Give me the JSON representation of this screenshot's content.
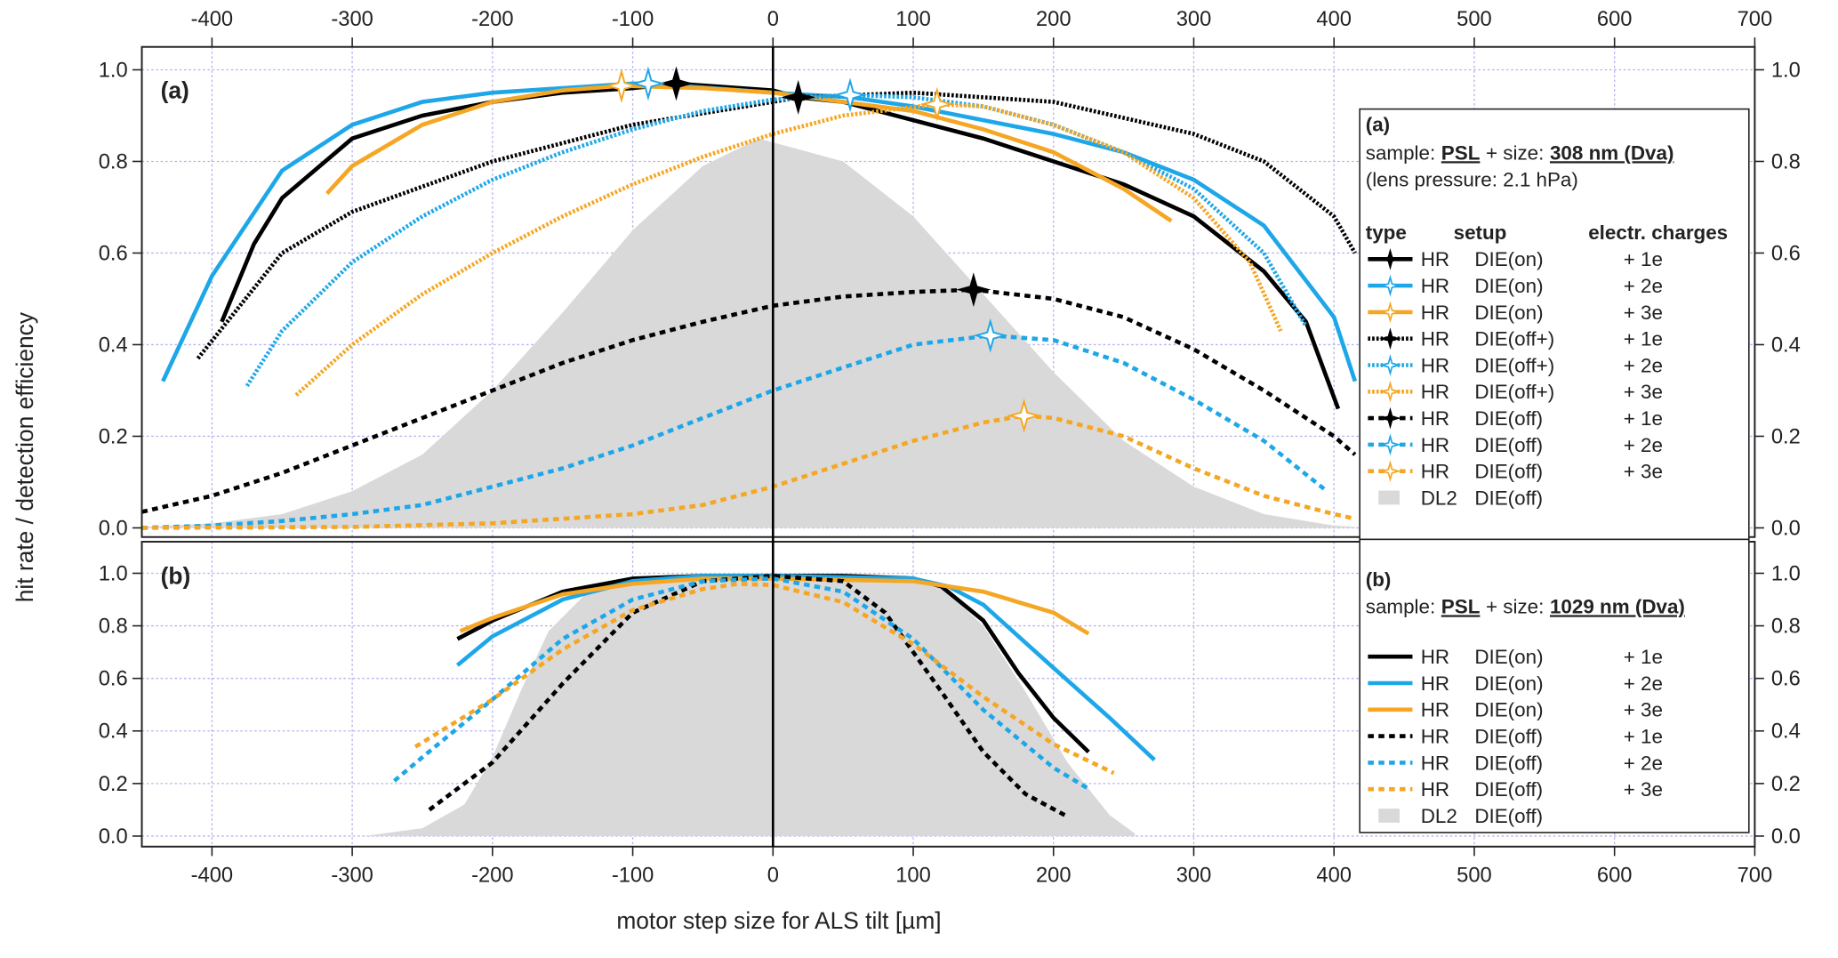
{
  "chart_data": [
    {
      "type": "line",
      "panel_label": "(a)",
      "ylabel": "hit rate / detection efficiency",
      "xlim": [
        -450,
        700
      ],
      "xticks": [
        -400,
        -300,
        -200,
        -100,
        0,
        100,
        200,
        300,
        400,
        500,
        600,
        700
      ],
      "ylim": [
        -0.02,
        1.05
      ],
      "yticks": [
        {
          "value": 0,
          "label": "0.0"
        },
        {
          "value": 0.2,
          "label": "0.2"
        },
        {
          "value": 0.4,
          "label": "0.4"
        },
        {
          "value": 0.6,
          "label": "0.6"
        },
        {
          "value": 0.8,
          "label": "0.8"
        },
        {
          "value": 1,
          "label": "1.0"
        }
      ],
      "y2lim": [
        -0.02,
        1.05
      ],
      "y2ticks": [
        {
          "value": 0,
          "label": "0.0"
        },
        {
          "value": 0.2,
          "label": "0.2"
        },
        {
          "value": 0.4,
          "label": "0.4"
        },
        {
          "value": 0.6,
          "label": "0.6"
        },
        {
          "value": 0.8,
          "label": "0.8"
        },
        {
          "value": 1,
          "label": "1.0"
        }
      ],
      "grid": true,
      "legend_title": "(a)",
      "legend_sample_label": "sample:",
      "legend_sample": "PSL",
      "legend_size_label": "+ size:",
      "legend_size": "308 nm (Dva)",
      "legend_note": "(lens pressure: 2.1 hPa)",
      "legend_headers": [
        "type",
        "setup",
        "electr. charges"
      ],
      "series": [
        {
          "name": "HR",
          "setup": "DIE(on)",
          "charges": "+ 1e",
          "color": "#000000",
          "dash": "solid",
          "x": [
            -393,
            -370,
            -350,
            -300,
            -250,
            -200,
            -150,
            -100,
            -69,
            0,
            18,
            50,
            100,
            150,
            200,
            250,
            300,
            350,
            380,
            403
          ],
          "values": [
            0.45,
            0.62,
            0.72,
            0.85,
            0.9,
            0.93,
            0.95,
            0.96,
            0.97,
            0.955,
            0.94,
            0.93,
            0.89,
            0.85,
            0.8,
            0.75,
            0.68,
            0.56,
            0.45,
            0.26
          ],
          "peak": {
            "x": -69,
            "y": 0.97
          }
        },
        {
          "name": "HR",
          "setup": "DIE(on)",
          "charges": "+ 2e",
          "color": "#1ea7e8",
          "dash": "solid",
          "x": [
            -435,
            -400,
            -350,
            -300,
            -250,
            -200,
            -150,
            -100,
            -89,
            0,
            55,
            100,
            150,
            200,
            250,
            300,
            350,
            400,
            415
          ],
          "values": [
            0.32,
            0.55,
            0.78,
            0.88,
            0.93,
            0.95,
            0.96,
            0.97,
            0.97,
            0.95,
            0.94,
            0.92,
            0.89,
            0.86,
            0.82,
            0.76,
            0.66,
            0.46,
            0.32
          ],
          "peak": {
            "x": -89,
            "y": 0.97
          }
        },
        {
          "name": "HR",
          "setup": "DIE(on)",
          "charges": "+ 3e",
          "color": "#f5a623",
          "dash": "solid",
          "x": [
            -318,
            -300,
            -250,
            -200,
            -150,
            -108,
            -50,
            0,
            50,
            100,
            150,
            200,
            250,
            284
          ],
          "values": [
            0.73,
            0.79,
            0.88,
            0.93,
            0.955,
            0.965,
            0.96,
            0.95,
            0.93,
            0.91,
            0.87,
            0.82,
            0.74,
            0.67
          ],
          "peak": {
            "x": -108,
            "y": 0.965
          }
        },
        {
          "name": "HR",
          "setup": "DIE(off+)",
          "charges": "+ 1e",
          "color": "#000000",
          "dash": "dotted",
          "x": [
            -410,
            -350,
            -300,
            -200,
            -100,
            0,
            18,
            100,
            200,
            300,
            350,
            400,
            415
          ],
          "values": [
            0.37,
            0.6,
            0.69,
            0.8,
            0.88,
            0.93,
            0.94,
            0.95,
            0.93,
            0.86,
            0.8,
            0.68,
            0.6
          ],
          "peak": {
            "x": 18,
            "y": 0.94
          }
        },
        {
          "name": "HR",
          "setup": "DIE(off+)",
          "charges": "+ 2e",
          "color": "#1ea7e8",
          "dash": "dotted",
          "x": [
            -375,
            -350,
            -300,
            -250,
            -200,
            -150,
            -100,
            -50,
            0,
            55,
            100,
            150,
            200,
            250,
            300,
            350,
            380
          ],
          "values": [
            0.31,
            0.43,
            0.58,
            0.68,
            0.76,
            0.82,
            0.87,
            0.91,
            0.935,
            0.945,
            0.94,
            0.92,
            0.88,
            0.82,
            0.74,
            0.6,
            0.44
          ],
          "peak": {
            "x": 55,
            "y": 0.945
          }
        },
        {
          "name": "HR",
          "setup": "DIE(off+)",
          "charges": "+ 3e",
          "color": "#f5a623",
          "dash": "dotted",
          "x": [
            -340,
            -300,
            -250,
            -200,
            -150,
            -100,
            -50,
            0,
            50,
            117,
            150,
            200,
            250,
            300,
            340,
            362
          ],
          "values": [
            0.29,
            0.4,
            0.51,
            0.6,
            0.68,
            0.75,
            0.81,
            0.86,
            0.9,
            0.925,
            0.92,
            0.88,
            0.82,
            0.72,
            0.58,
            0.43
          ],
          "peak": {
            "x": 117,
            "y": 0.925
          }
        },
        {
          "name": "HR",
          "setup": "DIE(off)",
          "charges": "+ 1e",
          "color": "#000000",
          "dash": "dashed",
          "x": [
            -450,
            -400,
            -350,
            -300,
            -250,
            -200,
            -150,
            -100,
            -50,
            0,
            50,
            100,
            143,
            200,
            250,
            300,
            350,
            400,
            415
          ],
          "values": [
            0.035,
            0.07,
            0.12,
            0.18,
            0.24,
            0.3,
            0.36,
            0.41,
            0.45,
            0.485,
            0.505,
            0.515,
            0.52,
            0.5,
            0.46,
            0.39,
            0.3,
            0.2,
            0.16
          ],
          "peak": {
            "x": 143,
            "y": 0.52
          }
        },
        {
          "name": "HR",
          "setup": "DIE(off)",
          "charges": "+ 2e",
          "color": "#1ea7e8",
          "dash": "dashed",
          "x": [
            -450,
            -400,
            -350,
            -300,
            -250,
            -200,
            -150,
            -100,
            -50,
            0,
            50,
            100,
            155,
            200,
            250,
            300,
            350,
            395
          ],
          "values": [
            0,
            0.005,
            0.015,
            0.03,
            0.05,
            0.09,
            0.13,
            0.18,
            0.24,
            0.3,
            0.35,
            0.4,
            0.42,
            0.41,
            0.36,
            0.28,
            0.19,
            0.08
          ],
          "peak": {
            "x": 155,
            "y": 0.42
          }
        },
        {
          "name": "HR",
          "setup": "DIE(off)",
          "charges": "+ 3e",
          "color": "#f5a623",
          "dash": "dashed",
          "x": [
            -450,
            -300,
            -200,
            -150,
            -100,
            -50,
            0,
            50,
            100,
            150,
            179,
            200,
            250,
            300,
            350,
            400,
            415
          ],
          "values": [
            0,
            0.002,
            0.01,
            0.02,
            0.03,
            0.05,
            0.09,
            0.14,
            0.19,
            0.23,
            0.245,
            0.24,
            0.2,
            0.13,
            0.07,
            0.03,
            0.02
          ],
          "peak": {
            "x": 179,
            "y": 0.245
          }
        },
        {
          "name": "DL2",
          "setup": "DIE(off)",
          "color": "#d9d9d9",
          "dash": "area",
          "x": [
            -450,
            -400,
            -350,
            -300,
            -250,
            -200,
            -150,
            -100,
            -50,
            -10,
            50,
            100,
            150,
            200,
            250,
            300,
            350,
            400,
            415
          ],
          "values": [
            0.002,
            0.01,
            0.03,
            0.08,
            0.16,
            0.3,
            0.47,
            0.65,
            0.79,
            0.85,
            0.8,
            0.68,
            0.51,
            0.34,
            0.19,
            0.09,
            0.03,
            0.005,
            0.002
          ]
        }
      ]
    },
    {
      "type": "line",
      "panel_label": "(b)",
      "xlabel": "motor step size for ALS tilt [µm]",
      "xlim": [
        -450,
        700
      ],
      "xticks": [
        -400,
        -300,
        -200,
        -100,
        0,
        100,
        200,
        300,
        400,
        500,
        600,
        700
      ],
      "ylim": [
        -0.04,
        1.12
      ],
      "yticks": [
        {
          "value": 0,
          "label": "0.0"
        },
        {
          "value": 0.2,
          "label": "0.2"
        },
        {
          "value": 0.4,
          "label": "0.4"
        },
        {
          "value": 0.6,
          "label": "0.6"
        },
        {
          "value": 0.8,
          "label": "0.8"
        },
        {
          "value": 1,
          "label": "1.0"
        }
      ],
      "y2lim": [
        -0.04,
        1.12
      ],
      "y2ticks": [
        {
          "value": 0,
          "label": "0.0"
        },
        {
          "value": 0.2,
          "label": "0.2"
        },
        {
          "value": 0.4,
          "label": "0.4"
        },
        {
          "value": 0.6,
          "label": "0.6"
        },
        {
          "value": 0.8,
          "label": "0.8"
        },
        {
          "value": 1,
          "label": "1.0"
        }
      ],
      "grid": true,
      "legend_title": "(b)",
      "legend_sample_label": "sample:",
      "legend_sample": "PSL",
      "legend_size_label": "+ size:",
      "legend_size": "1029 nm (Dva)",
      "series": [
        {
          "name": "HR",
          "setup": "DIE(on)",
          "charges": "+ 1e",
          "color": "#000000",
          "dash": "solid",
          "x": [
            -225,
            -200,
            -150,
            -100,
            -50,
            0,
            50,
            100,
            120,
            150,
            175,
            200,
            225
          ],
          "values": [
            0.75,
            0.82,
            0.93,
            0.98,
            0.99,
            0.99,
            0.99,
            0.98,
            0.95,
            0.82,
            0.62,
            0.45,
            0.32
          ]
        },
        {
          "name": "HR",
          "setup": "DIE(on)",
          "charges": "+ 2e",
          "color": "#1ea7e8",
          "dash": "solid",
          "x": [
            -225,
            -200,
            -150,
            -100,
            -50,
            0,
            100,
            125,
            150,
            200,
            240,
            272
          ],
          "values": [
            0.65,
            0.76,
            0.9,
            0.97,
            0.99,
            0.99,
            0.98,
            0.95,
            0.88,
            0.64,
            0.45,
            0.29
          ]
        },
        {
          "name": "HR",
          "setup": "DIE(on)",
          "charges": "+ 3e",
          "color": "#f5a623",
          "dash": "solid",
          "x": [
            -223,
            -200,
            -150,
            -100,
            -50,
            0,
            100,
            150,
            200,
            225
          ],
          "values": [
            0.78,
            0.83,
            0.92,
            0.96,
            0.98,
            0.98,
            0.97,
            0.93,
            0.85,
            0.77
          ]
        },
        {
          "name": "HR",
          "setup": "DIE(off)",
          "charges": "+ 1e",
          "color": "#000000",
          "dash": "dashed",
          "x": [
            -245,
            -200,
            -150,
            -100,
            -50,
            0,
            50,
            80,
            120,
            150,
            180,
            208
          ],
          "values": [
            0.1,
            0.28,
            0.58,
            0.85,
            0.97,
            0.99,
            0.97,
            0.85,
            0.55,
            0.32,
            0.16,
            0.08
          ]
        },
        {
          "name": "HR",
          "setup": "DIE(off)",
          "charges": "+ 2e",
          "color": "#1ea7e8",
          "dash": "dashed",
          "x": [
            -270,
            -250,
            -200,
            -150,
            -100,
            -50,
            0,
            50,
            100,
            150,
            200,
            225
          ],
          "values": [
            0.21,
            0.3,
            0.52,
            0.75,
            0.9,
            0.97,
            0.98,
            0.93,
            0.75,
            0.48,
            0.26,
            0.18
          ]
        },
        {
          "name": "HR",
          "setup": "DIE(off)",
          "charges": "+ 3e",
          "color": "#f5a623",
          "dash": "dashed",
          "x": [
            -255,
            -200,
            -150,
            -100,
            -50,
            -25,
            0,
            50,
            100,
            150,
            200,
            243
          ],
          "values": [
            0.34,
            0.52,
            0.71,
            0.86,
            0.94,
            0.96,
            0.955,
            0.89,
            0.73,
            0.53,
            0.35,
            0.24
          ]
        },
        {
          "name": "DL2",
          "setup": "DIE(off)",
          "color": "#d9d9d9",
          "dash": "area",
          "x": [
            -292,
            -250,
            -220,
            -200,
            -180,
            -160,
            -130,
            -100,
            -50,
            0,
            50,
            100,
            120,
            150,
            180,
            210,
            240,
            258
          ],
          "values": [
            0,
            0.03,
            0.12,
            0.3,
            0.55,
            0.78,
            0.94,
            0.98,
            1,
            1,
            1,
            0.99,
            0.95,
            0.8,
            0.55,
            0.28,
            0.08,
            0.01
          ]
        }
      ]
    }
  ]
}
